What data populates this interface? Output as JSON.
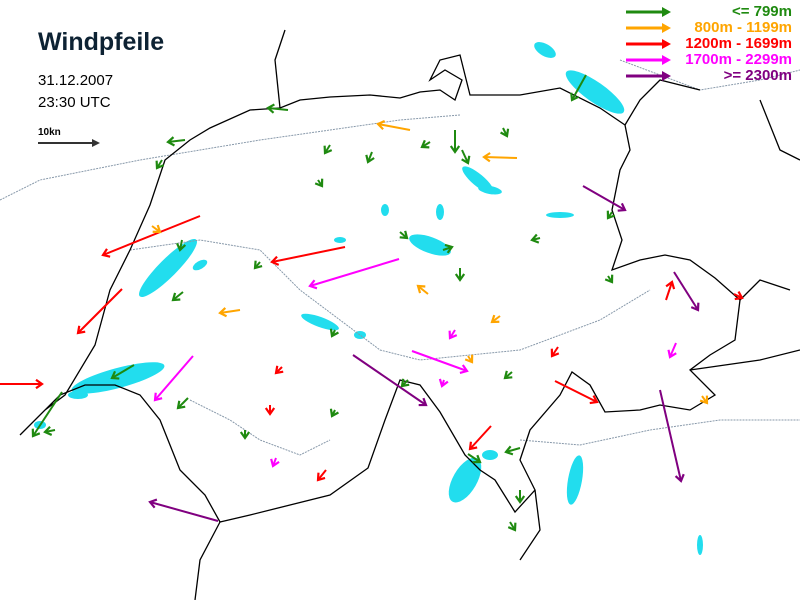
{
  "title": "Windpfeile",
  "date": "31.12.2007",
  "time": "23:30 UTC",
  "scale_label": "10kn",
  "legend": [
    {
      "label": "<=   799m",
      "color": "#1f8a10"
    },
    {
      "label": "800m - 1199m",
      "color": "#ffa500"
    },
    {
      "label": "1200m - 1699m",
      "color": "#ff0000"
    },
    {
      "label": "1700m - 2299m",
      "color": "#ff00ff"
    },
    {
      "label": ">= 2300m",
      "color": "#800080"
    }
  ],
  "colors": {
    "lake": "#22ddee",
    "border": "#000000",
    "river": "#7799aa"
  }
}
